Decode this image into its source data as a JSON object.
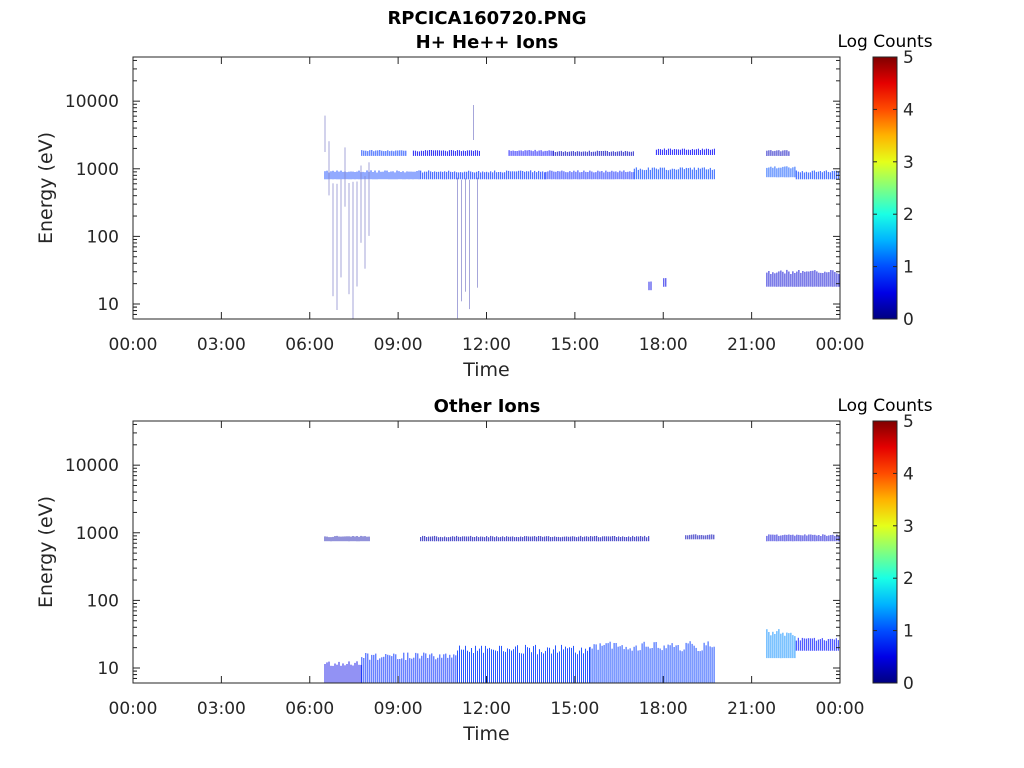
{
  "figure_title": "RPCICA160720.PNG",
  "chart_data": [
    {
      "type": "heatmap",
      "title": "H+ He++ Ions",
      "xlabel": "Time",
      "ylabel": "Energy (eV)",
      "y_scale": "log",
      "ylim": [
        6,
        45000
      ],
      "xlim": [
        "00:00",
        "24:00"
      ],
      "x_ticks": [
        "00:00",
        "03:00",
        "06:00",
        "09:00",
        "12:00",
        "15:00",
        "18:00",
        "21:00",
        "00:00"
      ],
      "y_ticks": [
        "10",
        "100",
        "1000",
        "10000"
      ],
      "y_tick_values": [
        10,
        100,
        1000,
        10000
      ],
      "colorbar": {
        "label": "Log Counts",
        "min": 0,
        "max": 5,
        "ticks": [
          "0",
          "1",
          "2",
          "3",
          "4",
          "5"
        ],
        "colormap": "jet"
      },
      "regions": [
        {
          "t_start": "07:45",
          "t_end": "09:15",
          "e_low": 1550,
          "e_high": 1900,
          "log_counts": 0.9
        },
        {
          "t_start": "09:30",
          "t_end": "11:45",
          "e_low": 1550,
          "e_high": 1900,
          "log_counts": 0.55
        },
        {
          "t_start": "12:45",
          "t_end": "14:15",
          "e_low": 1550,
          "e_high": 1900,
          "log_counts": 0.6
        },
        {
          "t_start": "14:15",
          "t_end": "17:00",
          "e_low": 1550,
          "e_high": 1850,
          "log_counts": 0.3
        },
        {
          "t_start": "17:45",
          "t_end": "19:45",
          "e_low": 1600,
          "e_high": 2000,
          "log_counts": 0.6
        },
        {
          "t_start": "06:30",
          "t_end": "09:45",
          "e_low": 700,
          "e_high": 950,
          "log_counts": 0.9
        },
        {
          "t_start": "09:45",
          "t_end": "14:00",
          "e_low": 700,
          "e_high": 950,
          "log_counts": 0.85
        },
        {
          "t_start": "14:00",
          "t_end": "17:00",
          "e_low": 700,
          "e_high": 950,
          "log_counts": 0.75
        },
        {
          "t_start": "17:00",
          "t_end": "19:45",
          "e_low": 700,
          "e_high": 1050,
          "log_counts": 0.95
        },
        {
          "t_start": "21:30",
          "t_end": "22:30",
          "e_low": 750,
          "e_high": 1100,
          "log_counts": 1.0
        },
        {
          "t_start": "22:30",
          "t_end": "24:00",
          "e_low": 700,
          "e_high": 950,
          "log_counts": 0.9
        },
        {
          "t_start": "21:30",
          "t_end": "22:15",
          "e_low": 1550,
          "e_high": 1900,
          "log_counts": 0.3
        },
        {
          "t_start": "21:30",
          "t_end": "24:00",
          "e_low": 18,
          "e_high": 32,
          "log_counts": 0.4
        },
        {
          "t_start": "06:30",
          "t_end": "08:00",
          "e_low": 6,
          "e_high": 8000,
          "log_counts": 0.1
        },
        {
          "t_start": "11:00",
          "t_end": "11:45",
          "e_low": 6,
          "e_high": 10000,
          "log_counts": 0.1
        },
        {
          "t_start": "17:30",
          "t_end": "17:35",
          "e_low": 16,
          "e_high": 22,
          "log_counts": 0.5
        },
        {
          "t_start": "18:00",
          "t_end": "18:05",
          "e_low": 18,
          "e_high": 25,
          "log_counts": 0.5
        }
      ]
    },
    {
      "type": "heatmap",
      "title": "Other Ions",
      "xlabel": "Time",
      "ylabel": "Energy (eV)",
      "y_scale": "log",
      "ylim": [
        6,
        45000
      ],
      "xlim": [
        "00:00",
        "24:00"
      ],
      "x_ticks": [
        "00:00",
        "03:00",
        "06:00",
        "09:00",
        "12:00",
        "15:00",
        "18:00",
        "21:00",
        "00:00"
      ],
      "y_ticks": [
        "10",
        "100",
        "1000",
        "10000"
      ],
      "y_tick_values": [
        10,
        100,
        1000,
        10000
      ],
      "colorbar": {
        "label": "Log Counts",
        "min": 0,
        "max": 5,
        "ticks": [
          "0",
          "1",
          "2",
          "3",
          "4",
          "5"
        ],
        "colormap": "jet"
      },
      "regions": [
        {
          "t_start": "06:30",
          "t_end": "08:00",
          "e_low": 750,
          "e_high": 900,
          "log_counts": 0.2
        },
        {
          "t_start": "09:45",
          "t_end": "17:30",
          "e_low": 750,
          "e_high": 900,
          "log_counts": 0.25
        },
        {
          "t_start": "18:45",
          "t_end": "19:45",
          "e_low": 800,
          "e_high": 950,
          "log_counts": 0.25
        },
        {
          "t_start": "21:30",
          "t_end": "24:00",
          "e_low": 750,
          "e_high": 950,
          "log_counts": 0.4
        },
        {
          "t_start": "06:30",
          "t_end": "07:45",
          "e_low": 6,
          "e_high": 13,
          "log_counts": 0.5
        },
        {
          "t_start": "07:45",
          "t_end": "11:00",
          "e_low": 6,
          "e_high": 17,
          "log_counts": 0.85
        },
        {
          "t_start": "11:00",
          "t_end": "15:30",
          "e_low": 6,
          "e_high": 22,
          "log_counts": 0.9
        },
        {
          "t_start": "15:30",
          "t_end": "19:45",
          "e_low": 6,
          "e_high": 25,
          "log_counts": 0.9
        },
        {
          "t_start": "21:30",
          "t_end": "22:30",
          "e_low": 14,
          "e_high": 38,
          "log_counts": 1.3
        },
        {
          "t_start": "22:30",
          "t_end": "24:00",
          "e_low": 18,
          "e_high": 28,
          "log_counts": 0.7
        }
      ]
    }
  ]
}
